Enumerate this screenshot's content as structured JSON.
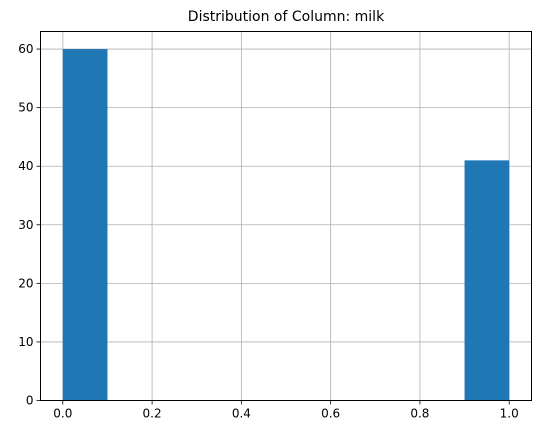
{
  "chart_data": {
    "type": "bar",
    "title": "Distribution of Column: milk",
    "xlabel": "",
    "ylabel": "",
    "xlim": [
      -0.05,
      1.05
    ],
    "ylim": [
      0,
      63
    ],
    "grid": true,
    "bar_color": "#1f77b4",
    "bins": [
      {
        "x0": 0.0,
        "x1": 0.1,
        "count": 60
      },
      {
        "x0": 0.1,
        "x1": 0.2,
        "count": 0
      },
      {
        "x0": 0.2,
        "x1": 0.3,
        "count": 0
      },
      {
        "x0": 0.3,
        "x1": 0.4,
        "count": 0
      },
      {
        "x0": 0.4,
        "x1": 0.5,
        "count": 0
      },
      {
        "x0": 0.5,
        "x1": 0.6,
        "count": 0
      },
      {
        "x0": 0.6,
        "x1": 0.7,
        "count": 0
      },
      {
        "x0": 0.7,
        "x1": 0.8,
        "count": 0
      },
      {
        "x0": 0.8,
        "x1": 0.9,
        "count": 0
      },
      {
        "x0": 0.9,
        "x1": 1.0,
        "count": 41
      }
    ],
    "x_ticks": [
      {
        "value": 0.0,
        "label": "0.0"
      },
      {
        "value": 0.2,
        "label": "0.2"
      },
      {
        "value": 0.4,
        "label": "0.4"
      },
      {
        "value": 0.6,
        "label": "0.6"
      },
      {
        "value": 0.8,
        "label": "0.8"
      },
      {
        "value": 1.0,
        "label": "1.0"
      }
    ],
    "y_ticks": [
      {
        "value": 0,
        "label": "0"
      },
      {
        "value": 10,
        "label": "10"
      },
      {
        "value": 20,
        "label": "20"
      },
      {
        "value": 30,
        "label": "30"
      },
      {
        "value": 40,
        "label": "40"
      },
      {
        "value": 50,
        "label": "50"
      },
      {
        "value": 60,
        "label": "60"
      }
    ]
  }
}
